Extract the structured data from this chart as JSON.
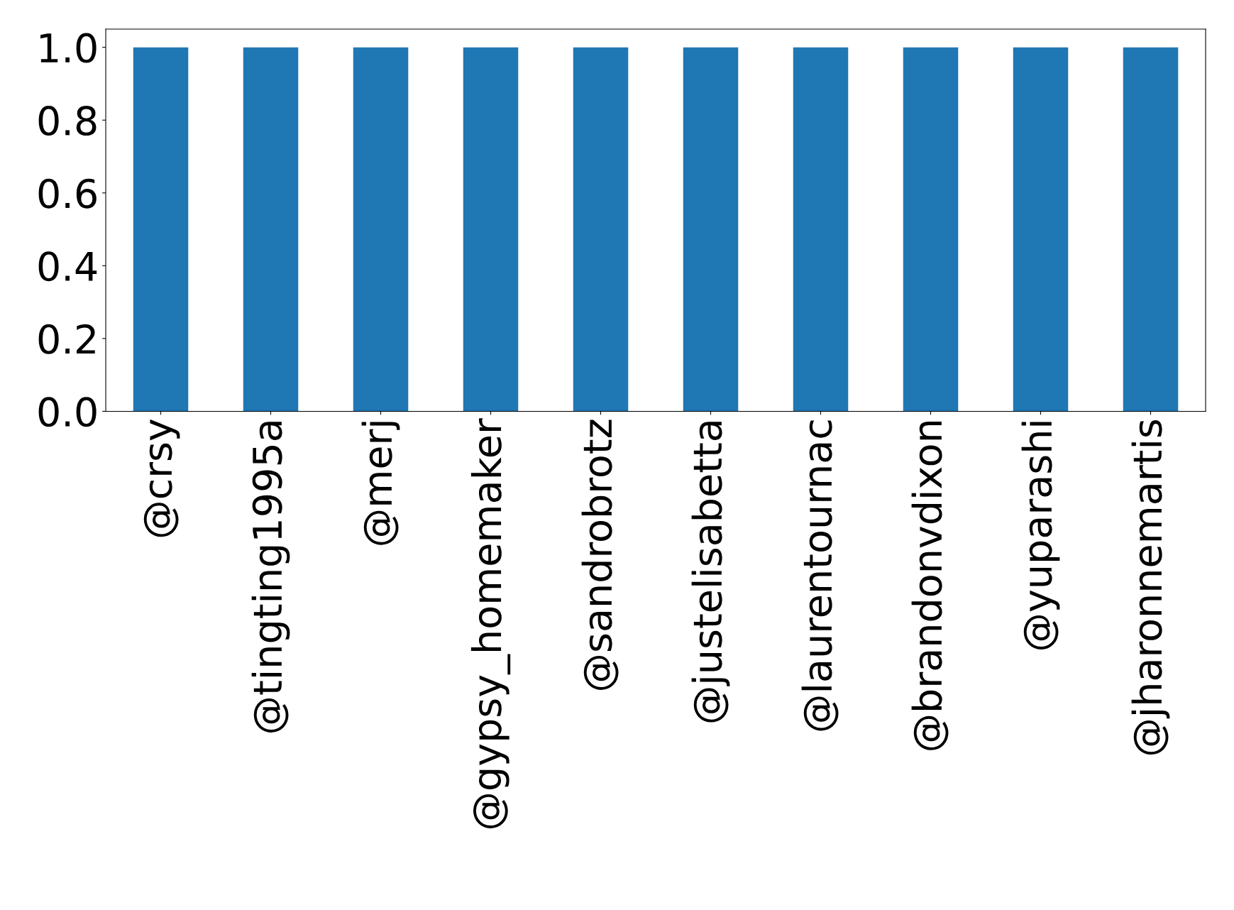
{
  "chart_data": {
    "type": "bar",
    "categories": [
      "@crsy",
      "@tingting1995a",
      "@merj",
      "@gypsy_homemaker",
      "@sandrobrotz",
      "@justelisabetta",
      "@laurentournac",
      "@brandonvdixon",
      "@yuparashi",
      "@jharonnemartis"
    ],
    "values": [
      1,
      1,
      1,
      1,
      1,
      1,
      1,
      1,
      1,
      1
    ],
    "color": "#1f77b4",
    "ylim": [
      0,
      1.05
    ],
    "yticks": [
      {
        "value": 0,
        "label": "0.0"
      },
      {
        "value": 0.2,
        "label": "0.2"
      },
      {
        "value": 0.4,
        "label": "0.4"
      },
      {
        "value": 0.6,
        "label": "0.6"
      },
      {
        "value": 0.8,
        "label": "0.8"
      },
      {
        "value": 1,
        "label": "1.0"
      }
    ],
    "grid": false
  }
}
